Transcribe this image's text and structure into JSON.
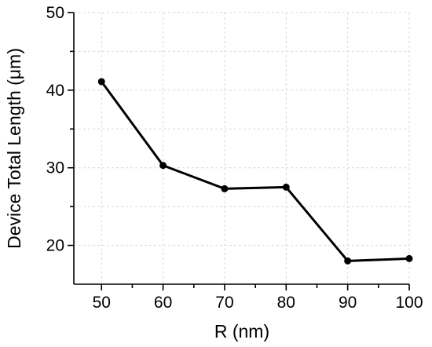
{
  "chart_data": {
    "type": "line",
    "xlabel": "R (nm)",
    "ylabel": "Device Total Length (μm)",
    "x": [
      50,
      60,
      70,
      80,
      90,
      100
    ],
    "series": [
      {
        "values": [
          41.1,
          30.3,
          27.3,
          27.5,
          18.0,
          18.3
        ]
      }
    ],
    "xlim": [
      45.5,
      100
    ],
    "ylim": [
      15,
      50
    ],
    "xticks": [
      50,
      60,
      70,
      80,
      90,
      100
    ],
    "yticks": [
      20,
      30,
      40,
      50
    ],
    "grid": true,
    "colors": {
      "line": "#000000",
      "marker": "#000000",
      "grid": "#d9d9d9"
    }
  }
}
